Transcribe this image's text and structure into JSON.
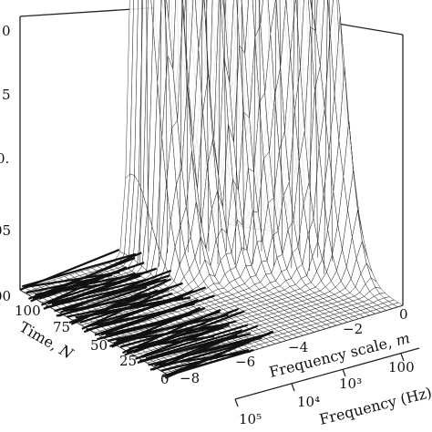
{
  "chart_data": {
    "type": "surface-3d",
    "xlabel": "Frequency scale, m",
    "ylabel": "Time, N",
    "zlabel": "",
    "secondary_xlabel": "Frequency (Hz)",
    "x_ticks": [
      "−8",
      "−6",
      "−4",
      "−2",
      "0"
    ],
    "y_ticks": [
      "0",
      "25",
      "50",
      "75",
      "100"
    ],
    "z_ticks": [
      "00",
      "05",
      "0.",
      "5",
      "0"
    ],
    "secondary_x_ticks": [
      "10⁵",
      "10⁴",
      "10³",
      "100"
    ],
    "xlim": [
      -8,
      0
    ],
    "ylim": [
      0,
      100
    ],
    "zlim": [
      0,
      0.2
    ],
    "grid": false,
    "peaks": [
      {
        "m": -4.0,
        "N": 95,
        "z": 0.082
      },
      {
        "m": -3.6,
        "N": 90,
        "z": 0.08
      },
      {
        "m": -3.1,
        "N": 86,
        "z": 0.076
      },
      {
        "m": -2.6,
        "N": 82,
        "z": 0.074
      },
      {
        "m": -2.2,
        "N": 78,
        "z": 0.072
      },
      {
        "m": -1.8,
        "N": 74,
        "z": 0.07
      },
      {
        "m": -1.4,
        "N": 70,
        "z": 0.068
      },
      {
        "m": -1.0,
        "N": 64,
        "z": 0.066
      },
      {
        "m": -0.7,
        "N": 58,
        "z": 0.06
      },
      {
        "m": -0.4,
        "N": 52,
        "z": 0.056
      },
      {
        "m": -0.2,
        "N": 46,
        "z": 0.048
      }
    ]
  }
}
